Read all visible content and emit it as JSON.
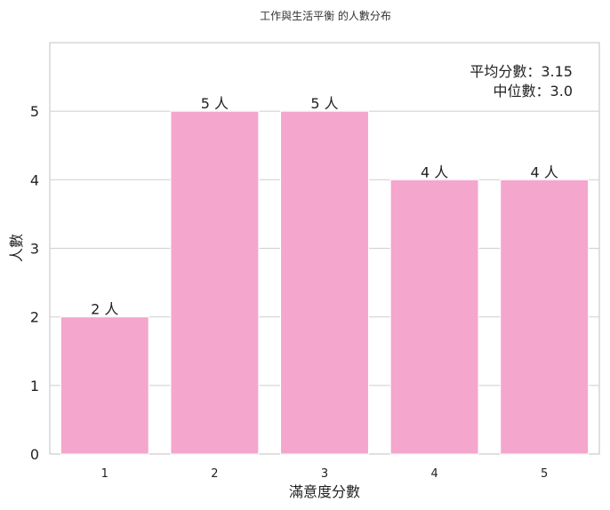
{
  "chart_data": {
    "type": "bar",
    "title": "工作與生活平衡 的人數分布",
    "xlabel": "滿意度分數",
    "ylabel": "人數",
    "categories": [
      "1",
      "2",
      "3",
      "4",
      "5"
    ],
    "values": [
      2,
      5,
      5,
      4,
      4
    ],
    "bar_labels": [
      "2 人",
      "5 人",
      "5 人",
      "4 人",
      "4 人"
    ],
    "y_ticks": [
      "0",
      "1",
      "2",
      "3",
      "4",
      "5"
    ],
    "ylim": [
      0,
      6.0
    ],
    "grid": "horizontal",
    "bar_color": "#f4a6cd",
    "annotations": {
      "mean": "平均分數：3.15",
      "median": "中位數：3.0"
    },
    "annotation_placement": "top-right"
  }
}
